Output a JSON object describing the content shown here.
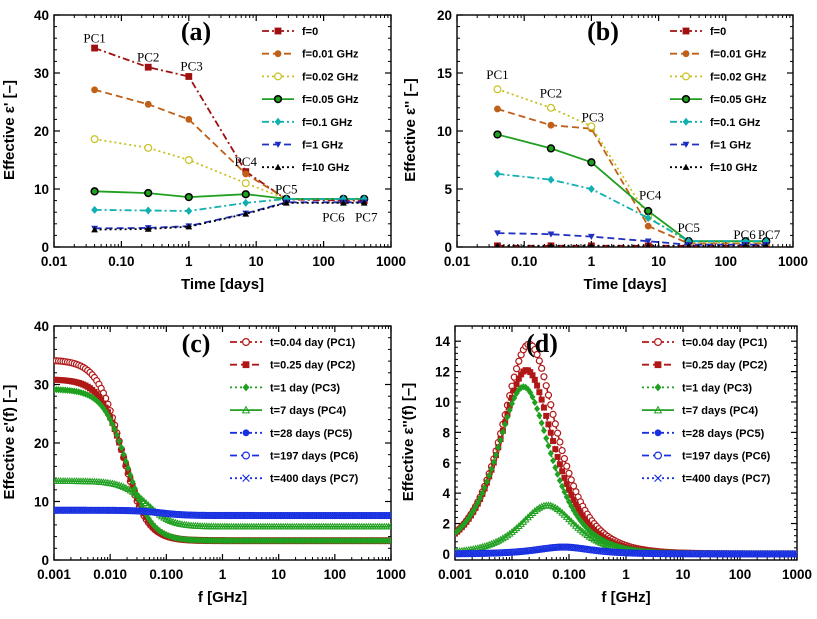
{
  "chart_data": [
    {
      "type": "line",
      "panel": "(a)",
      "xlabel": "Time [days]",
      "ylabel": "Effective ε' [–]",
      "xscale": "log",
      "xlim": [
        0.01,
        1000
      ],
      "ylim": [
        0,
        40
      ],
      "xticks": [
        0.01,
        0.1,
        1,
        10,
        100,
        1000
      ],
      "xticklabels": [
        "0.01",
        "0.10",
        "1",
        "10",
        "100",
        "1000"
      ],
      "yticks": [
        0,
        10,
        20,
        30,
        40
      ],
      "yticklabels": [
        "0",
        "10",
        "20",
        "30",
        "40"
      ],
      "x": [
        0.04,
        0.25,
        1,
        7,
        28,
        197,
        400
      ],
      "series": [
        {
          "name": "f=0",
          "color": "#A01010",
          "dash": "dashdot",
          "marker": "square",
          "values": [
            34.3,
            31.0,
            29.4,
            13.0,
            8.2,
            8.0,
            8.0
          ]
        },
        {
          "name": "f=0.01 GHz",
          "color": "#C06018",
          "dash": "dash",
          "marker": "circle",
          "values": [
            27.1,
            24.6,
            22.0,
            12.6,
            8.3,
            8.2,
            8.2
          ]
        },
        {
          "name": "f=0.02 GHz",
          "color": "#C8C020",
          "dash": "dot",
          "marker": "circle-open",
          "values": [
            18.6,
            17.1,
            15.0,
            11.0,
            8.3,
            8.3,
            8.3
          ]
        },
        {
          "name": "f=0.05 GHz",
          "color": "#20A020",
          "dash": "solid",
          "marker": "circle-dark",
          "values": [
            9.6,
            9.3,
            8.6,
            9.1,
            8.3,
            8.3,
            8.3
          ]
        },
        {
          "name": "f=0.1 GHz",
          "color": "#10B0B0",
          "dash": "dashdot",
          "marker": "diamond",
          "values": [
            6.4,
            6.3,
            6.2,
            7.6,
            8.3,
            8.3,
            8.3
          ]
        },
        {
          "name": "f=1 GHz",
          "color": "#2030C0",
          "dash": "dash",
          "marker": "triangle-down",
          "values": [
            3.2,
            3.3,
            3.6,
            5.8,
            7.7,
            7.7,
            7.7
          ]
        },
        {
          "name": "f=10 GHz",
          "color": "#000000",
          "dash": "dot",
          "marker": "triangle-up",
          "values": [
            3.0,
            3.1,
            3.5,
            5.7,
            7.6,
            7.6,
            7.6
          ]
        }
      ],
      "annotations": [
        {
          "text": "PC1",
          "x": 0.04,
          "y": 35.3
        },
        {
          "text": "PC2",
          "x": 0.25,
          "y": 32.0
        },
        {
          "text": "PC3",
          "x": 1.1,
          "y": 30.4
        },
        {
          "text": "PC4",
          "x": 7,
          "y": 14.0
        },
        {
          "text": "PC5",
          "x": 28,
          "y": 9.2
        },
        {
          "text": "PC6",
          "x": 140,
          "y": 4.4
        },
        {
          "text": "PC7",
          "x": 430,
          "y": 4.4
        }
      ]
    },
    {
      "type": "line",
      "panel": "(b)",
      "xlabel": "Time [days]",
      "ylabel": "Effective ε'' [–]",
      "xscale": "log",
      "xlim": [
        0.01,
        1000
      ],
      "ylim": [
        0,
        20
      ],
      "xticks": [
        0.01,
        0.1,
        1,
        10,
        100,
        1000
      ],
      "xticklabels": [
        "0.01",
        "0.10",
        "1",
        "10",
        "100",
        "1000"
      ],
      "yticks": [
        0,
        5,
        10,
        15,
        20
      ],
      "yticklabels": [
        "0",
        "5",
        "10",
        "15",
        "20"
      ],
      "x": [
        0.04,
        0.25,
        1,
        7,
        28,
        197,
        400
      ],
      "series": [
        {
          "name": "f=0",
          "color": "#A01010",
          "dash": "dashdot",
          "marker": "square",
          "values": [
            0.1,
            0.1,
            0.1,
            0.1,
            0.1,
            0.1,
            0.1
          ]
        },
        {
          "name": "f=0.01 GHz",
          "color": "#C06018",
          "dash": "dash",
          "marker": "circle",
          "values": [
            11.9,
            10.5,
            10.2,
            1.8,
            0.3,
            0.3,
            0.3
          ]
        },
        {
          "name": "f=0.02 GHz",
          "color": "#C8C020",
          "dash": "dot",
          "marker": "circle-open",
          "values": [
            13.6,
            12.0,
            10.4,
            2.6,
            0.4,
            0.4,
            0.4
          ]
        },
        {
          "name": "f=0.05 GHz",
          "color": "#20A020",
          "dash": "solid",
          "marker": "circle-dark",
          "values": [
            9.7,
            8.5,
            7.3,
            3.1,
            0.5,
            0.5,
            0.5
          ]
        },
        {
          "name": "f=0.1 GHz",
          "color": "#10B0B0",
          "dash": "dashdot",
          "marker": "diamond",
          "values": [
            6.3,
            5.8,
            5.0,
            2.5,
            0.5,
            0.5,
            0.5
          ]
        },
        {
          "name": "f=1 GHz",
          "color": "#2030C0",
          "dash": "dash",
          "marker": "triangle-down",
          "values": [
            1.2,
            1.1,
            0.9,
            0.5,
            0.2,
            0.2,
            0.2
          ]
        },
        {
          "name": "f=10 GHz",
          "color": "#000000",
          "dash": "dot",
          "marker": "triangle-up",
          "values": [
            0.1,
            0.1,
            0.1,
            0.1,
            0.1,
            0.1,
            0.1
          ]
        }
      ],
      "annotations": [
        {
          "text": "PC1",
          "x": 0.04,
          "y": 14.5
        },
        {
          "text": "PC2",
          "x": 0.25,
          "y": 12.9
        },
        {
          "text": "PC3",
          "x": 1.05,
          "y": 10.8
        },
        {
          "text": "PC4",
          "x": 7.5,
          "y": 4.1
        },
        {
          "text": "PC5",
          "x": 28,
          "y": 1.3
        },
        {
          "text": "PC6",
          "x": 190,
          "y": 0.7
        },
        {
          "text": "PC7",
          "x": 440,
          "y": 0.7
        }
      ]
    },
    {
      "type": "line",
      "panel": "(c)",
      "xlabel": "f [GHz]",
      "ylabel": "Effective ε'(f) [–]",
      "xscale": "log",
      "xlim": [
        0.001,
        1000
      ],
      "ylim": [
        0,
        40
      ],
      "xticks": [
        0.001,
        0.01,
        0.1,
        1,
        10,
        100,
        1000
      ],
      "xticklabels": [
        "0.001",
        "0.010",
        "0.100",
        "1",
        "10",
        "100",
        "1000"
      ],
      "yticks": [
        0,
        10,
        20,
        30,
        40
      ],
      "yticklabels": [
        "0",
        "10",
        "20",
        "30",
        "40"
      ],
      "series": [
        {
          "name": "t=0.04 day (PC1)",
          "color": "#B01818",
          "dash": "dashdot",
          "marker": "circle-open",
          "model": "debye",
          "eps_inf": 3.3,
          "delta": 30.9,
          "f_relax": 0.016
        },
        {
          "name": "t=0.25 day (PC2)",
          "color": "#B01818",
          "dash": "dash",
          "marker": "square",
          "model": "debye",
          "eps_inf": 3.3,
          "delta": 27.6,
          "f_relax": 0.018
        },
        {
          "name": "t=1 day (PC3)",
          "color": "#20A020",
          "dash": "dot",
          "marker": "diamond",
          "model": "debye",
          "eps_inf": 3.3,
          "delta": 25.9,
          "f_relax": 0.02
        },
        {
          "name": "t=7 days (PC4)",
          "color": "#20A020",
          "dash": "solid",
          "marker": "triangle-open",
          "model": "debye",
          "eps_inf": 5.7,
          "delta": 7.8,
          "f_relax": 0.045
        },
        {
          "name": "t=28 days (PC5)",
          "color": "#1830E0",
          "dash": "dashdot",
          "marker": "circle",
          "model": "debye",
          "eps_inf": 7.6,
          "delta": 0.9,
          "f_relax": 0.08
        },
        {
          "name": "t=197 days (PC6)",
          "color": "#1830E0",
          "dash": "dash",
          "marker": "circle-open",
          "model": "debye",
          "eps_inf": 7.6,
          "delta": 0.9,
          "f_relax": 0.08
        },
        {
          "name": "t=400 days (PC7)",
          "color": "#1830E0",
          "dash": "dot",
          "marker": "cross",
          "model": "debye",
          "eps_inf": 7.6,
          "delta": 0.9,
          "f_relax": 0.08
        }
      ]
    },
    {
      "type": "line",
      "panel": "(d)",
      "xlabel": "f [GHz]",
      "ylabel": "Effective ε''(f) [–]",
      "xscale": "log",
      "xlim": [
        0.001,
        1000
      ],
      "ylim": [
        -0.4,
        15
      ],
      "xticks": [
        0.001,
        0.01,
        0.1,
        1,
        10,
        100,
        1000
      ],
      "xticklabels": [
        "0.001",
        "0.010",
        "0.100",
        "1",
        "10",
        "100",
        "1000"
      ],
      "yticks": [
        0,
        2,
        4,
        6,
        8,
        10,
        12,
        14
      ],
      "yticklabels": [
        "0",
        "2",
        "4",
        "6",
        "8",
        "10",
        "12",
        "14"
      ],
      "series": [
        {
          "name": "t=0.04 day (PC1)",
          "color": "#B01818",
          "dash": "dashdot",
          "marker": "circle-open",
          "model": "loss",
          "peak": 13.8,
          "f_peak": 0.02
        },
        {
          "name": "t=0.25 day (PC2)",
          "color": "#B01818",
          "dash": "dash",
          "marker": "square",
          "model": "loss",
          "peak": 12.1,
          "f_peak": 0.018
        },
        {
          "name": "t=1 day (PC3)",
          "color": "#20A020",
          "dash": "dot",
          "marker": "diamond",
          "model": "loss",
          "peak": 11.0,
          "f_peak": 0.016
        },
        {
          "name": "t=7 days (PC4)",
          "color": "#20A020",
          "dash": "solid",
          "marker": "triangle-open",
          "model": "loss",
          "peak": 3.2,
          "f_peak": 0.042
        },
        {
          "name": "t=28 days (PC5)",
          "color": "#1830E0",
          "dash": "dashdot",
          "marker": "circle",
          "model": "loss",
          "peak": 0.45,
          "f_peak": 0.08
        },
        {
          "name": "t=197 days (PC6)",
          "color": "#1830E0",
          "dash": "dash",
          "marker": "circle-open",
          "model": "loss",
          "peak": 0.45,
          "f_peak": 0.08
        },
        {
          "name": "t=400 days (PC7)",
          "color": "#1830E0",
          "dash": "dot",
          "marker": "cross",
          "model": "loss",
          "peak": 0.45,
          "f_peak": 0.08
        }
      ]
    }
  ]
}
